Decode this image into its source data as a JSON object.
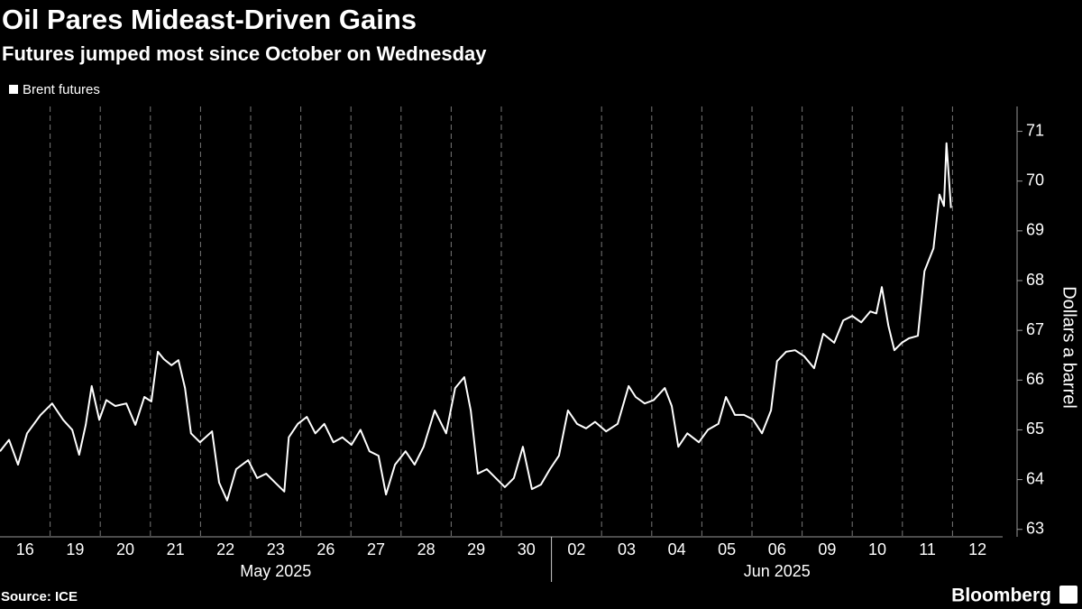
{
  "chart_data": {
    "type": "line",
    "title": "Oil Pares Mideast-Driven Gains",
    "subtitle": "Futures jumped most since October on Wednesday",
    "source": "Source: ICE",
    "brand": "Bloomberg",
    "y_axis_label": "Dollars a barrel",
    "ylim": [
      62.85,
      71.5
    ],
    "yticks": [
      63,
      64,
      65,
      66,
      67,
      68,
      69,
      70,
      71
    ],
    "xlim": [
      0,
      20
    ],
    "xticks": [
      {
        "value": 0.5,
        "label": "16"
      },
      {
        "value": 1.5,
        "label": "19"
      },
      {
        "value": 2.5,
        "label": "20"
      },
      {
        "value": 3.5,
        "label": "21"
      },
      {
        "value": 4.5,
        "label": "22"
      },
      {
        "value": 5.5,
        "label": "23"
      },
      {
        "value": 6.5,
        "label": "26"
      },
      {
        "value": 7.5,
        "label": "27"
      },
      {
        "value": 8.5,
        "label": "28"
      },
      {
        "value": 9.5,
        "label": "29"
      },
      {
        "value": 10.5,
        "label": "30"
      },
      {
        "value": 11.5,
        "label": "02"
      },
      {
        "value": 12.5,
        "label": "03"
      },
      {
        "value": 13.5,
        "label": "04"
      },
      {
        "value": 14.5,
        "label": "05"
      },
      {
        "value": 15.5,
        "label": "06"
      },
      {
        "value": 16.5,
        "label": "09"
      },
      {
        "value": 17.5,
        "label": "10"
      },
      {
        "value": 18.5,
        "label": "11"
      },
      {
        "value": 19.5,
        "label": "12"
      }
    ],
    "months": [
      {
        "label": "May 2025",
        "range": [
          0,
          11
        ]
      },
      {
        "label": "Jun 2025",
        "range": [
          11,
          20
        ]
      }
    ],
    "grid": true,
    "legend": "top-left",
    "series": [
      {
        "name": "Brent futures",
        "color": "#ffffff",
        "x": [
          0,
          0.18,
          0.36,
          0.54,
          0.81,
          1.04,
          1.26,
          1.44,
          1.58,
          1.71,
          1.83,
          1.98,
          2.12,
          2.3,
          2.52,
          2.7,
          2.88,
          3.02,
          3.15,
          3.27,
          3.42,
          3.56,
          3.69,
          3.81,
          3.99,
          4.23,
          4.37,
          4.53,
          4.71,
          4.95,
          5.13,
          5.31,
          5.49,
          5.67,
          5.76,
          5.94,
          6.12,
          6.29,
          6.47,
          6.65,
          6.83,
          7.01,
          7.19,
          7.37,
          7.55,
          7.7,
          7.88,
          8.09,
          8.27,
          8.45,
          8.67,
          8.9,
          9.08,
          9.26,
          9.39,
          9.53,
          9.71,
          9.89,
          10.07,
          10.25,
          10.43,
          10.61,
          10.79,
          10.97,
          11.15,
          11.33,
          11.51,
          11.69,
          11.87,
          12.09,
          12.32,
          12.54,
          12.68,
          12.86,
          13.04,
          13.26,
          13.4,
          13.53,
          13.71,
          13.94,
          14.12,
          14.33,
          14.48,
          14.66,
          14.84,
          15.02,
          15.2,
          15.38,
          15.5,
          15.68,
          15.86,
          16.04,
          16.24,
          16.42,
          16.64,
          16.82,
          17.0,
          17.18,
          17.36,
          17.48,
          17.59,
          17.72,
          17.84,
          17.99,
          18.13,
          18.31,
          18.44,
          18.62,
          18.74,
          18.83,
          18.88,
          18.97
        ],
        "values": [
          64.57,
          64.8,
          64.3,
          64.93,
          65.3,
          65.53,
          65.2,
          65.0,
          64.5,
          65.1,
          65.88,
          65.2,
          65.6,
          65.48,
          65.53,
          65.1,
          65.66,
          65.57,
          66.57,
          66.42,
          66.3,
          66.4,
          65.84,
          64.93,
          64.75,
          64.97,
          63.94,
          63.58,
          64.21,
          64.39,
          64.03,
          64.12,
          63.94,
          63.76,
          64.85,
          65.12,
          65.26,
          64.93,
          65.12,
          64.75,
          64.85,
          64.7,
          65.0,
          64.57,
          64.48,
          63.7,
          64.3,
          64.57,
          64.3,
          64.66,
          65.39,
          64.93,
          65.84,
          66.06,
          65.39,
          64.12,
          64.21,
          64.03,
          63.85,
          64.03,
          64.66,
          63.81,
          63.9,
          64.21,
          64.48,
          65.39,
          65.12,
          65.03,
          65.16,
          64.97,
          65.12,
          65.88,
          65.66,
          65.53,
          65.6,
          65.84,
          65.48,
          64.66,
          64.93,
          64.75,
          65.0,
          65.12,
          65.66,
          65.3,
          65.3,
          65.21,
          64.93,
          65.39,
          66.38,
          66.57,
          66.6,
          66.48,
          66.24,
          66.93,
          66.75,
          67.2,
          67.29,
          67.16,
          67.38,
          67.34,
          67.87,
          67.1,
          66.6,
          66.75,
          66.84,
          66.89,
          68.19,
          68.65,
          69.73,
          69.5,
          70.76,
          69.46
        ]
      }
    ]
  }
}
